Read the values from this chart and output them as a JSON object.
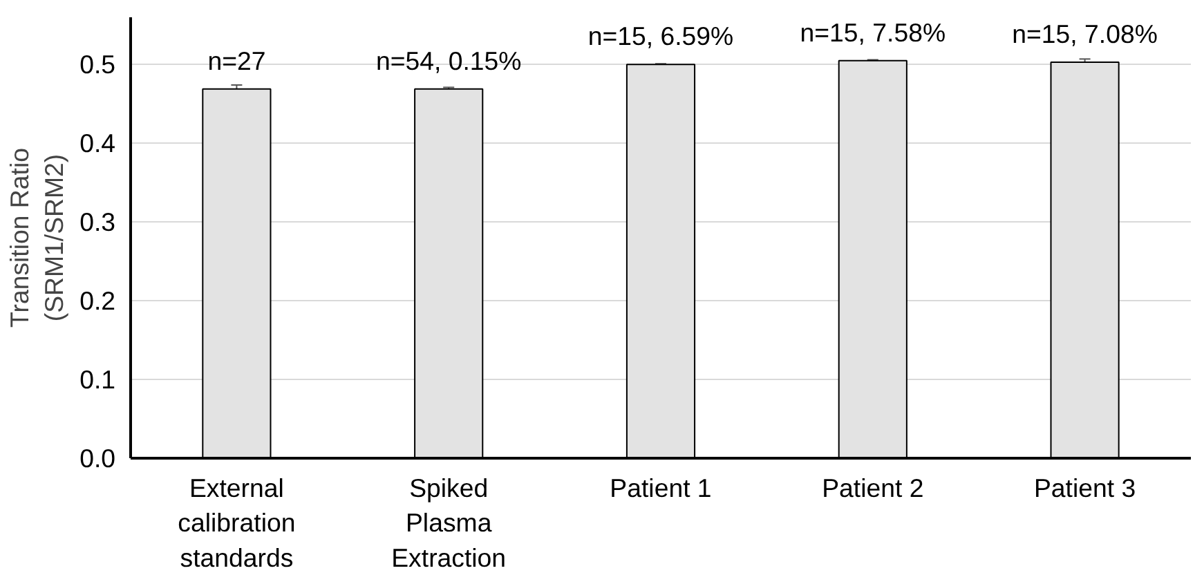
{
  "chart_data": {
    "type": "bar",
    "ylabel": "Transition Ratio\n(SRM1/SRM2)",
    "categories": [
      "External\ncalibration\nstandards",
      "Spiked\nPlasma\nExtraction",
      "Patient 1",
      "Patient 2",
      "Patient 3"
    ],
    "values": [
      0.469,
      0.469,
      0.5,
      0.505,
      0.503
    ],
    "errors": [
      0.005,
      0.002,
      0.001,
      0.001,
      0.004
    ],
    "color": "#e3e3e3",
    "ylim": [
      0,
      0.56
    ],
    "yticks": [
      {
        "value": 0,
        "label": "0.0"
      },
      0.1,
      0.2,
      0.3,
      0.4,
      0.5
    ],
    "grid": "y",
    "annotations": [
      {
        "text": "n=27",
        "x": "External\ncalibration\nstandards",
        "y": 0.469
      },
      {
        "text": "n=54, 0.15%",
        "x": "Spiked\nPlasma\nExtraction",
        "y": 0.469
      },
      {
        "text": "n=15, 6.59%",
        "x": "Patient 1",
        "y": 0.5
      },
      {
        "text": "n=15, 7.58%",
        "x": "Patient 2",
        "y": 0.505
      },
      {
        "text": "n=15, 7.08%",
        "x": "Patient 3",
        "y": 0.503
      }
    ]
  }
}
